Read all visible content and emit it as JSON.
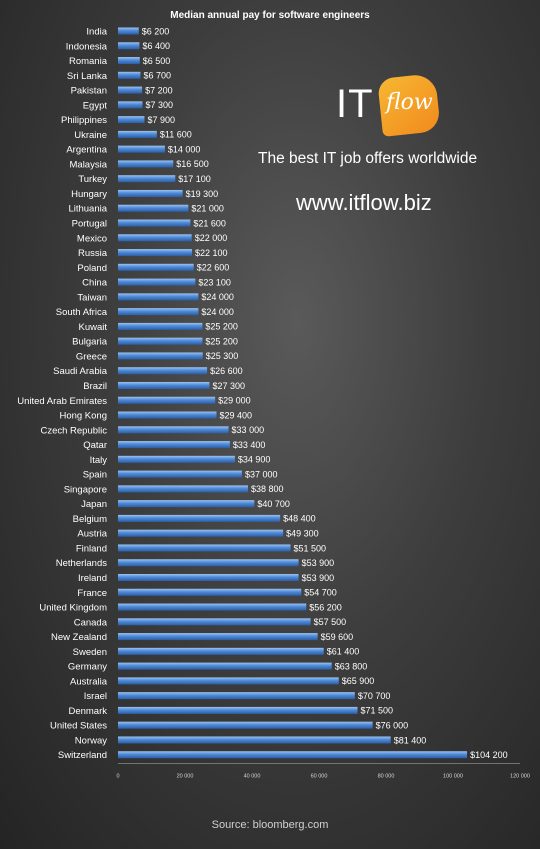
{
  "chart_data": {
    "type": "bar",
    "orientation": "horizontal",
    "title": "Median annual pay for software engineers",
    "categories": [
      "India",
      "Indonesia",
      "Romania",
      "Sri Lanka",
      "Pakistan",
      "Egypt",
      "Philippines",
      "Ukraine",
      "Argentina",
      "Malaysia",
      "Turkey",
      "Hungary",
      "Lithuania",
      "Portugal",
      "Mexico",
      "Russia",
      "Poland",
      "China",
      "Taiwan",
      "South Africa",
      "Kuwait",
      "Bulgaria",
      "Greece",
      "Saudi Arabia",
      "Brazil",
      "United Arab Emirates",
      "Hong Kong",
      "Czech Republic",
      "Qatar",
      "Italy",
      "Spain",
      "Singapore",
      "Japan",
      "Belgium",
      "Austria",
      "Finland",
      "Netherlands",
      "Ireland",
      "France",
      "United Kingdom",
      "Canada",
      "New Zealand",
      "Sweden",
      "Germany",
      "Australia",
      "Israel",
      "Denmark",
      "United States",
      "Norway",
      "Switzerland"
    ],
    "values": [
      6200,
      6400,
      6500,
      6700,
      7200,
      7300,
      7900,
      11600,
      14000,
      16500,
      17100,
      19300,
      21000,
      21600,
      22000,
      22100,
      22600,
      23100,
      24000,
      24000,
      25200,
      25200,
      25300,
      26600,
      27300,
      29000,
      29400,
      33000,
      33400,
      34900,
      37000,
      38800,
      40700,
      48400,
      49300,
      51500,
      53900,
      53900,
      54700,
      56200,
      57500,
      59600,
      61400,
      63800,
      65900,
      70700,
      71500,
      76000,
      81400,
      104200
    ],
    "value_labels": [
      "$6 200",
      "$6 400",
      "$6 500",
      "$6 700",
      "$7 200",
      "$7 300",
      "$7 900",
      "$11 600",
      "$14 000",
      "$16 500",
      "$17 100",
      "$19 300",
      "$21 000",
      "$21 600",
      "$22 000",
      "$22 100",
      "$22 600",
      "$23 100",
      "$24 000",
      "$24 000",
      "$25 200",
      "$25 200",
      "$25 300",
      "$26 600",
      "$27 300",
      "$29 000",
      "$29 400",
      "$33 000",
      "$33 400",
      "$34 900",
      "$37 000",
      "$38 800",
      "$40 700",
      "$48 400",
      "$49 300",
      "$51 500",
      "$53 900",
      "$53 900",
      "$54 700",
      "$56 200",
      "$57 500",
      "$59 600",
      "$61 400",
      "$63 800",
      "$65 900",
      "$70 700",
      "$71 500",
      "$76 000",
      "$81 400",
      "$104 200"
    ],
    "xlim": [
      0,
      120000
    ],
    "xticks": [
      0,
      20000,
      40000,
      60000,
      80000,
      100000,
      120000
    ],
    "xtick_labels": [
      "0",
      "20 000",
      "40 000",
      "60 000",
      "80 000",
      "100 000",
      "120 000"
    ],
    "xlabel": "",
    "ylabel": "",
    "grid": false,
    "legend": "none",
    "bar_color": "#4f8ad6"
  },
  "brand": {
    "logo_it": "IT",
    "logo_flow": "flow",
    "tagline": "The best IT job offers worldwide",
    "url": "www.itflow.biz",
    "accent": "#f39c1f"
  },
  "source": "Source: bloomberg.com"
}
